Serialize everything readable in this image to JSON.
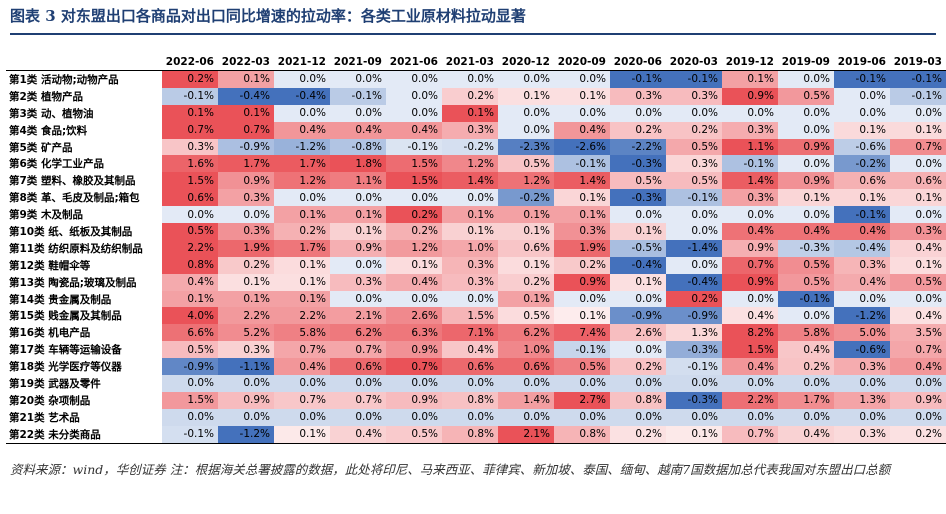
{
  "title": "图表 3   对东盟出口各商品对出口同比增速的拉动率：各类工业原材料拉动显著",
  "columns": [
    "2022-06",
    "2022-03",
    "2021-12",
    "2021-09",
    "2021-06",
    "2021-03",
    "2020-12",
    "2020-09",
    "2020-06",
    "2020-03",
    "2019-12",
    "2019-09",
    "2019-06",
    "2019-03"
  ],
  "rows": [
    {
      "label": "第1类 活动物;动物产品",
      "values": [
        "0.2%",
        "0.1%",
        "0.0%",
        "0.0%",
        "0.0%",
        "0.0%",
        "0.0%",
        "0.0%",
        "-0.1%",
        "-0.1%",
        "0.1%",
        "0.0%",
        "-0.1%",
        "-0.1%"
      ]
    },
    {
      "label": "第2类 植物产品",
      "values": [
        "-0.1%",
        "-0.4%",
        "-0.4%",
        "-0.1%",
        "0.0%",
        "0.2%",
        "0.1%",
        "0.1%",
        "0.3%",
        "0.3%",
        "0.9%",
        "0.5%",
        "0.0%",
        "-0.1%"
      ]
    },
    {
      "label": "第3类 动、植物油",
      "values": [
        "0.1%",
        "0.1%",
        "0.0%",
        "0.0%",
        "0.0%",
        "0.1%",
        "0.0%",
        "0.0%",
        "0.0%",
        "0.0%",
        "0.0%",
        "0.0%",
        "0.0%",
        "0.0%"
      ]
    },
    {
      "label": "第4类 食品;饮料",
      "values": [
        "0.7%",
        "0.7%",
        "0.4%",
        "0.4%",
        "0.4%",
        "0.3%",
        "0.0%",
        "0.4%",
        "0.2%",
        "0.2%",
        "0.3%",
        "0.0%",
        "0.1%",
        "0.1%"
      ]
    },
    {
      "label": "第5类 矿产品",
      "values": [
        "0.3%",
        "-0.9%",
        "-1.2%",
        "-0.8%",
        "-0.1%",
        "-0.2%",
        "-2.3%",
        "-2.6%",
        "-2.2%",
        "0.5%",
        "1.1%",
        "0.9%",
        "-0.6%",
        "0.7%"
      ]
    },
    {
      "label": "第6类 化学工业产品",
      "values": [
        "1.6%",
        "1.7%",
        "1.7%",
        "1.8%",
        "1.5%",
        "1.2%",
        "0.5%",
        "-0.1%",
        "-0.3%",
        "0.3%",
        "-0.1%",
        "0.0%",
        "-0.2%",
        "0.0%"
      ]
    },
    {
      "label": "第7类 塑料、橡胶及其制品",
      "values": [
        "1.5%",
        "0.9%",
        "1.2%",
        "1.1%",
        "1.5%",
        "1.4%",
        "1.2%",
        "1.4%",
        "0.5%",
        "0.5%",
        "1.4%",
        "0.9%",
        "0.6%",
        "0.6%"
      ]
    },
    {
      "label": "第8类 革、毛皮及制品;箱包",
      "values": [
        "0.6%",
        "0.3%",
        "0.0%",
        "0.0%",
        "0.0%",
        "0.0%",
        "-0.2%",
        "0.1%",
        "-0.3%",
        "-0.1%",
        "0.3%",
        "0.1%",
        "0.1%",
        "0.1%"
      ]
    },
    {
      "label": "第9类 木及制品",
      "values": [
        "0.0%",
        "0.0%",
        "0.1%",
        "0.1%",
        "0.2%",
        "0.1%",
        "0.1%",
        "0.1%",
        "0.0%",
        "0.0%",
        "0.0%",
        "0.0%",
        "-0.1%",
        "0.0%"
      ]
    },
    {
      "label": "第10类 纸、纸板及其制品",
      "values": [
        "0.5%",
        "0.3%",
        "0.2%",
        "0.1%",
        "0.2%",
        "0.1%",
        "0.1%",
        "0.3%",
        "0.1%",
        "0.0%",
        "0.4%",
        "0.4%",
        "0.4%",
        "0.3%"
      ]
    },
    {
      "label": "第11类 纺织原料及纺织制品",
      "values": [
        "2.2%",
        "1.9%",
        "1.7%",
        "0.9%",
        "1.2%",
        "1.0%",
        "0.6%",
        "1.9%",
        "-0.5%",
        "-1.4%",
        "0.9%",
        "-0.3%",
        "-0.4%",
        "0.4%"
      ]
    },
    {
      "label": "第12类 鞋帽伞等",
      "values": [
        "0.8%",
        "0.2%",
        "0.1%",
        "0.0%",
        "0.1%",
        "0.3%",
        "0.1%",
        "0.2%",
        "-0.4%",
        "0.0%",
        "0.7%",
        "0.5%",
        "0.3%",
        "0.1%"
      ]
    },
    {
      "label": "第13类 陶瓷品;玻璃及制品",
      "values": [
        "0.4%",
        "0.1%",
        "0.1%",
        "0.3%",
        "0.4%",
        "0.3%",
        "0.2%",
        "0.9%",
        "0.1%",
        "-0.4%",
        "0.9%",
        "0.5%",
        "0.4%",
        "0.5%"
      ]
    },
    {
      "label": "第14类 贵金属及制品",
      "values": [
        "0.1%",
        "0.1%",
        "0.1%",
        "0.0%",
        "0.0%",
        "0.0%",
        "0.1%",
        "0.0%",
        "0.0%",
        "0.2%",
        "0.0%",
        "-0.1%",
        "0.0%",
        "0.0%"
      ]
    },
    {
      "label": "第15类 贱金属及其制品",
      "values": [
        "4.0%",
        "2.2%",
        "2.2%",
        "2.1%",
        "2.6%",
        "1.5%",
        "0.5%",
        "0.1%",
        "-0.9%",
        "-0.9%",
        "0.4%",
        "0.0%",
        "-1.2%",
        "0.4%"
      ]
    },
    {
      "label": "第16类 机电产品",
      "values": [
        "6.6%",
        "5.2%",
        "5.8%",
        "6.2%",
        "6.3%",
        "7.1%",
        "6.2%",
        "7.4%",
        "2.6%",
        "1.3%",
        "8.2%",
        "5.8%",
        "5.0%",
        "3.5%"
      ]
    },
    {
      "label": "第17类 车辆等运输设备",
      "values": [
        "0.5%",
        "0.3%",
        "0.7%",
        "0.7%",
        "0.9%",
        "0.4%",
        "1.0%",
        "-0.1%",
        "0.0%",
        "-0.3%",
        "1.5%",
        "0.4%",
        "-0.6%",
        "0.7%"
      ]
    },
    {
      "label": "第18类 光学医疗等仪器",
      "values": [
        "-0.9%",
        "-1.1%",
        "0.4%",
        "0.6%",
        "0.7%",
        "0.6%",
        "0.6%",
        "0.5%",
        "0.2%",
        "-0.1%",
        "0.4%",
        "0.2%",
        "0.3%",
        "0.4%"
      ]
    },
    {
      "label": "第19类 武器及零件",
      "values": [
        "0.0%",
        "0.0%",
        "0.0%",
        "0.0%",
        "0.0%",
        "0.0%",
        "0.0%",
        "0.0%",
        "0.0%",
        "0.0%",
        "0.0%",
        "0.0%",
        "0.0%",
        "0.0%"
      ]
    },
    {
      "label": "第20类 杂项制品",
      "values": [
        "1.5%",
        "0.9%",
        "0.7%",
        "0.7%",
        "0.9%",
        "0.8%",
        "1.4%",
        "2.7%",
        "0.8%",
        "-0.3%",
        "2.2%",
        "1.7%",
        "1.3%",
        "0.9%"
      ]
    },
    {
      "label": "第21类 艺术品",
      "values": [
        "0.0%",
        "0.0%",
        "0.0%",
        "0.0%",
        "0.0%",
        "0.0%",
        "0.0%",
        "0.0%",
        "0.0%",
        "0.0%",
        "0.0%",
        "0.0%",
        "0.0%",
        "0.0%"
      ]
    },
    {
      "label": "第22类 未分类商品",
      "values": [
        "-0.1%",
        "-1.2%",
        "0.1%",
        "0.4%",
        "0.5%",
        "0.8%",
        "2.1%",
        "0.8%",
        "0.2%",
        "0.1%",
        "0.7%",
        "0.4%",
        "0.3%",
        "0.2%"
      ]
    }
  ],
  "colors": {
    "positive": "#e8454b",
    "negative": "#3a6ab8",
    "zero": "#aec3e6",
    "title": "#1f3f73"
  },
  "note": "资料来源：wind，华创证券  注：根据海关总署披露的数据，此处将印尼、马来西亚、菲律宾、新加坡、泰国、缅甸、越南7国数据加总代表我国对东盟出口总额"
}
